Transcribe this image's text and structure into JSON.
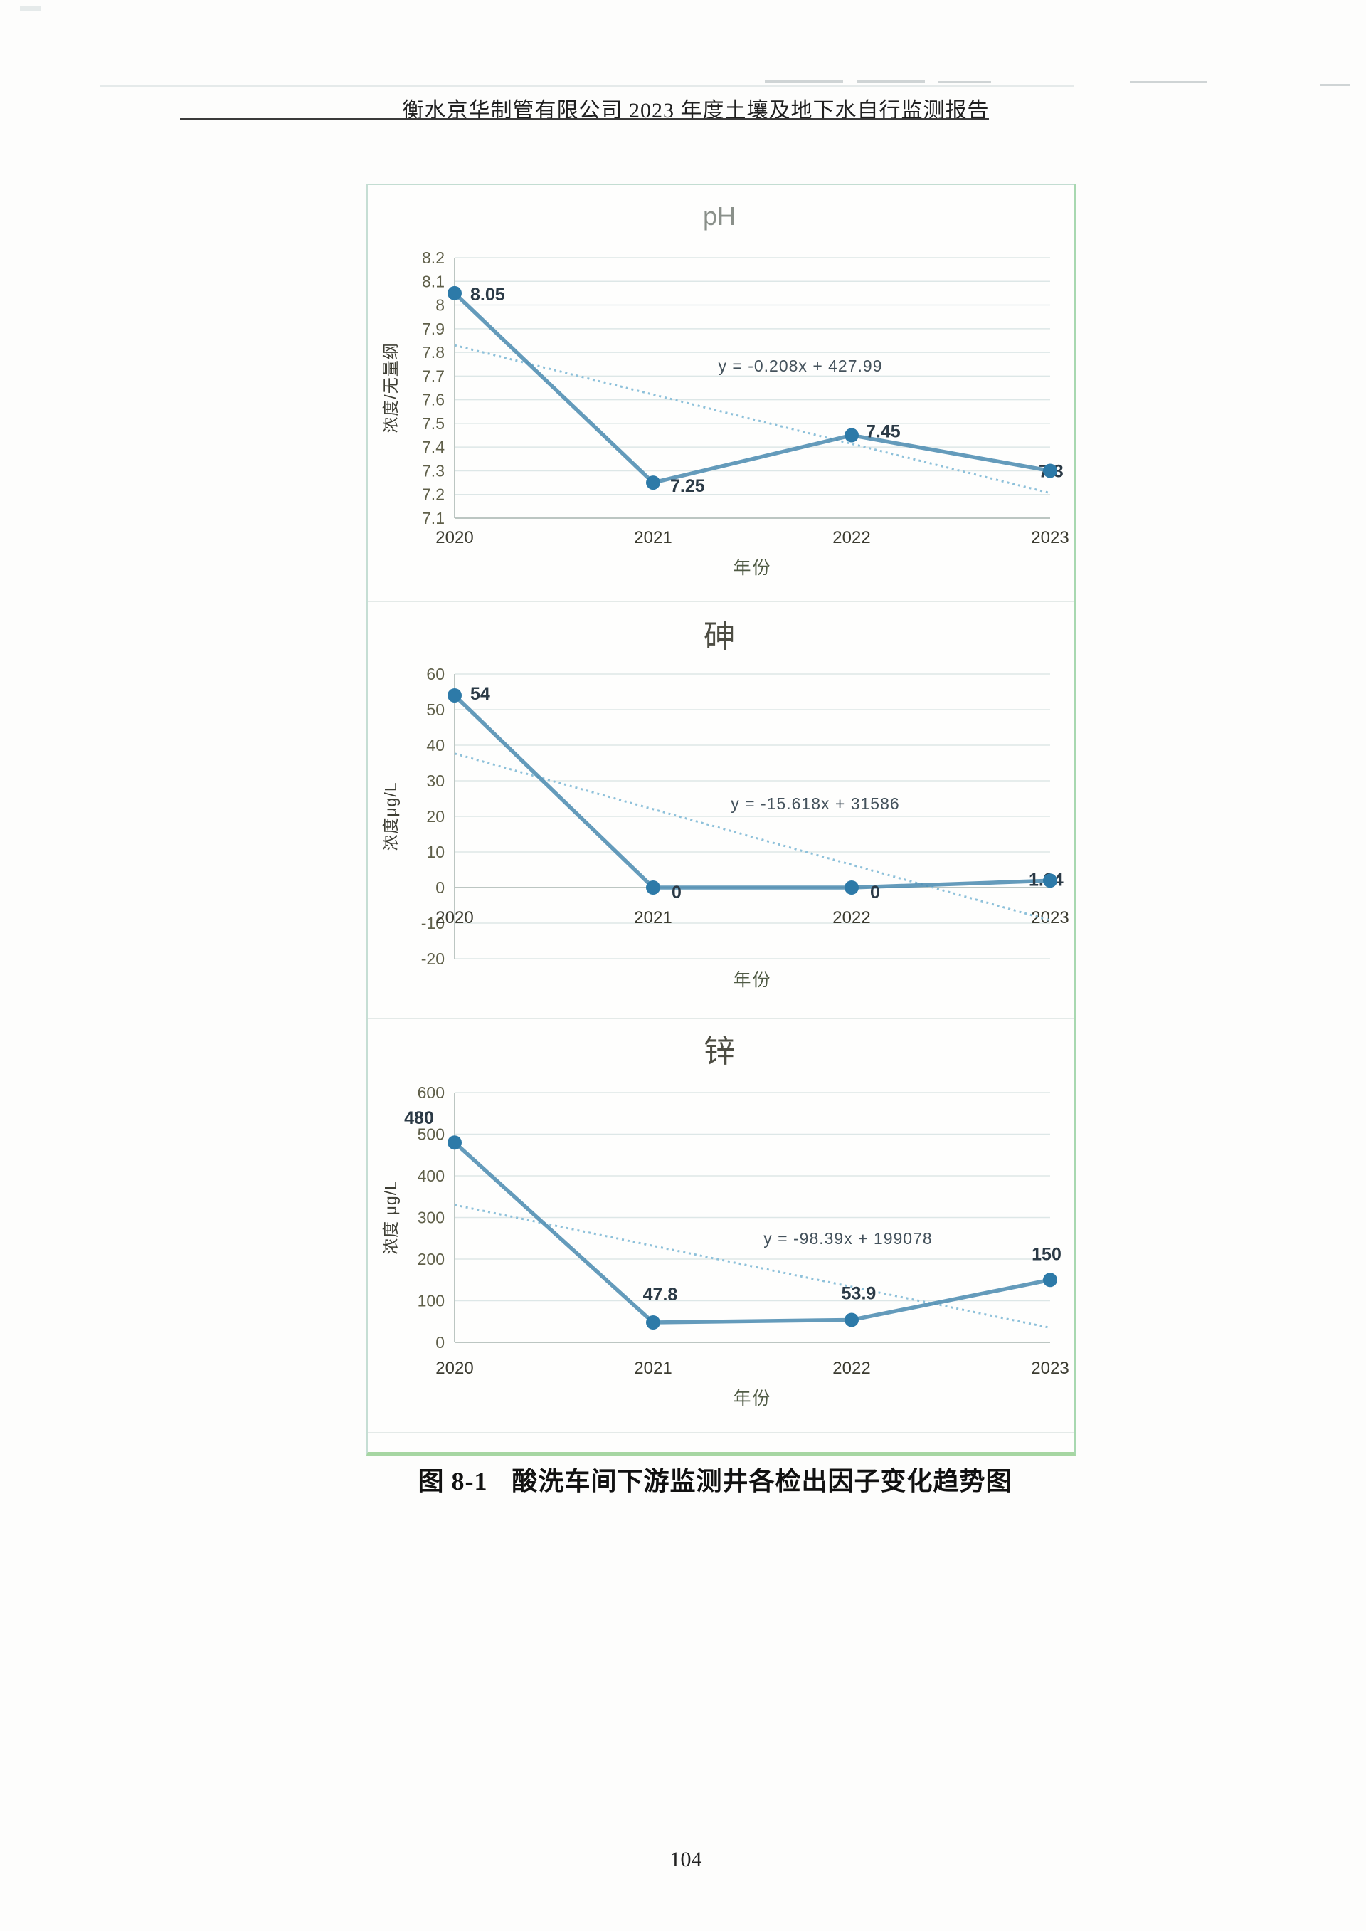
{
  "page": {
    "header": "衡水京华制管有限公司 2023 年度土壤及地下水自行监测报告",
    "caption_label": "图 8-1",
    "caption_text": "酸洗车间下游监测井各检出因子变化趋势图",
    "page_number": "104"
  },
  "colors": {
    "series_line": "#4e8db2",
    "marker": "#2d7aa8",
    "trend_line": "#8ec1da",
    "gridline": "#dde7e7",
    "panel_border": "#c3ddd2",
    "panel_border_green": "#a6d6a2",
    "header_rule": "#3a3a3a"
  },
  "chart_data": [
    {
      "type": "line",
      "title": "pH",
      "xlabel": "年份",
      "ylabel": "浓度/无量纲",
      "categories": [
        "2020",
        "2021",
        "2022",
        "2023"
      ],
      "values": [
        8.05,
        7.25,
        7.45,
        7.3
      ],
      "point_labels": [
        "8.05",
        "7.25",
        "7.45",
        "7.3"
      ],
      "ylim": [
        7.1,
        8.2
      ],
      "y_tick_labels": [
        "8.2",
        "8.1",
        "8",
        "7.9",
        "7.8",
        "7.7",
        "7.6",
        "7.5",
        "7.4",
        "7.3",
        "7.2",
        "7.1"
      ],
      "trend": {
        "slope": -0.208,
        "intercept": 427.99,
        "label": "y = -0.208x + 427.99"
      },
      "grid": true,
      "legend": "none"
    },
    {
      "type": "line",
      "title": "砷",
      "xlabel": "年份",
      "ylabel": "浓度μg/L",
      "categories": [
        "2020",
        "2021",
        "2022",
        "2023"
      ],
      "values": [
        54,
        0,
        0,
        1.94
      ],
      "point_labels": [
        "54",
        "0",
        "0",
        "1.94"
      ],
      "ylim": [
        -20,
        60
      ],
      "y_tick_labels": [
        "60",
        "50",
        "40",
        "30",
        "20",
        "10",
        "0",
        "-10",
        "-20"
      ],
      "trend": {
        "slope": -15.618,
        "intercept": 31586,
        "label": "y = -15.618x + 31586"
      },
      "grid": true,
      "legend": "none"
    },
    {
      "type": "line",
      "title": "锌",
      "xlabel": "年份",
      "ylabel": "浓度 μg/L",
      "categories": [
        "2020",
        "2021",
        "2022",
        "2023"
      ],
      "values": [
        480,
        47.8,
        53.9,
        150
      ],
      "point_labels": [
        "480",
        "47.8",
        "53.9",
        "150"
      ],
      "ylim": [
        0,
        600
      ],
      "y_tick_labels": [
        "600",
        "500",
        "400",
        "300",
        "200",
        "100",
        "0"
      ],
      "trend": {
        "slope": -98.39,
        "intercept": 199078,
        "label": "y = -98.39x + 199078"
      },
      "grid": true,
      "legend": "none"
    }
  ]
}
